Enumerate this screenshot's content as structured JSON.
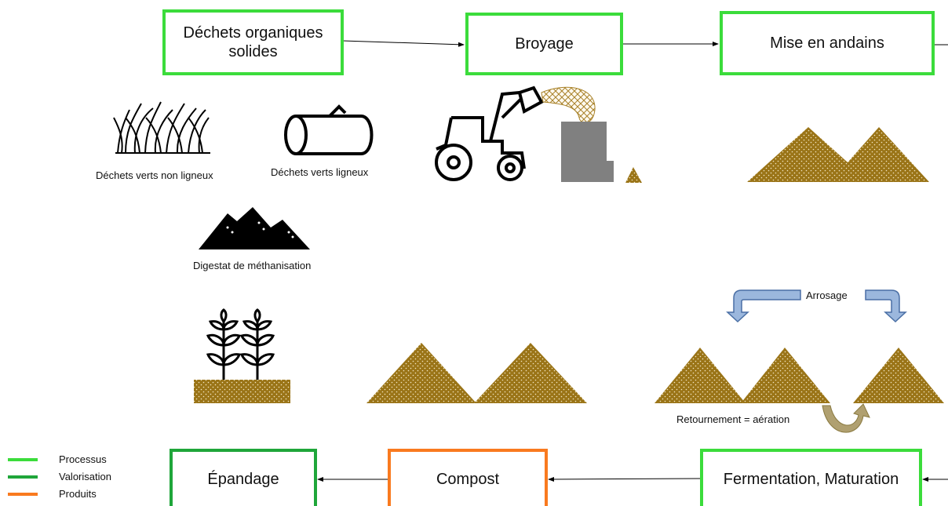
{
  "nodes": [
    {
      "label": "Déchets organiques solides"
    },
    {
      "label": "Broyage"
    },
    {
      "label": "Mise en andains"
    },
    {
      "label": "Fermentation, Maturation"
    },
    {
      "label": "Compost"
    },
    {
      "label": "Épandage"
    }
  ],
  "labels": [
    "Déchets verts non ligneux",
    "Déchets verts ligneux",
    "Digestat de méthanisation",
    "Arrosage",
    "Retournement = aération"
  ],
  "legend": [
    "Processus",
    "Valorisation",
    "Produits"
  ]
}
